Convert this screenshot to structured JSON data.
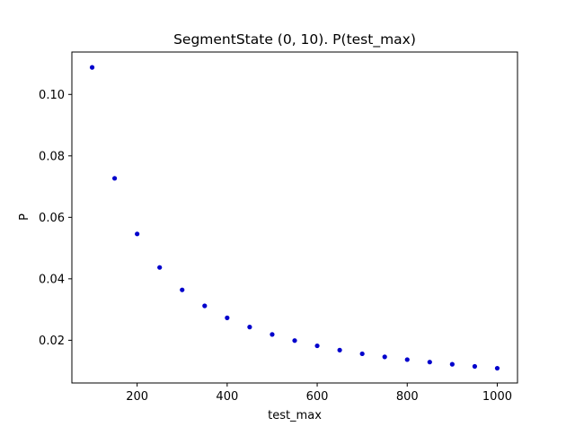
{
  "chart_data": {
    "type": "scatter",
    "title": "SegmentState (0, 10). P(test_max)",
    "xlabel": "test_max",
    "ylabel": "P",
    "xlim": [
      55,
      1045
    ],
    "ylim": [
      0.0061,
      0.1138
    ],
    "xticks": [
      200,
      400,
      600,
      800,
      1000
    ],
    "xtick_labels": [
      "200",
      "400",
      "600",
      "800",
      "1000"
    ],
    "yticks": [
      0.02,
      0.04,
      0.06,
      0.08,
      0.1
    ],
    "ytick_labels": [
      "0.02",
      "0.04",
      "0.06",
      "0.08",
      "0.10"
    ],
    "grid": false,
    "legend": null,
    "marker_color": "#0000cc",
    "x": [
      100,
      150,
      200,
      250,
      300,
      350,
      400,
      450,
      500,
      550,
      600,
      650,
      700,
      750,
      800,
      850,
      900,
      950,
      1000
    ],
    "y": [
      0.1088,
      0.0727,
      0.0546,
      0.0437,
      0.0364,
      0.0312,
      0.0273,
      0.0243,
      0.0219,
      0.0199,
      0.0182,
      0.0168,
      0.0156,
      0.0146,
      0.0137,
      0.0129,
      0.0122,
      0.0115,
      0.0109
    ]
  }
}
